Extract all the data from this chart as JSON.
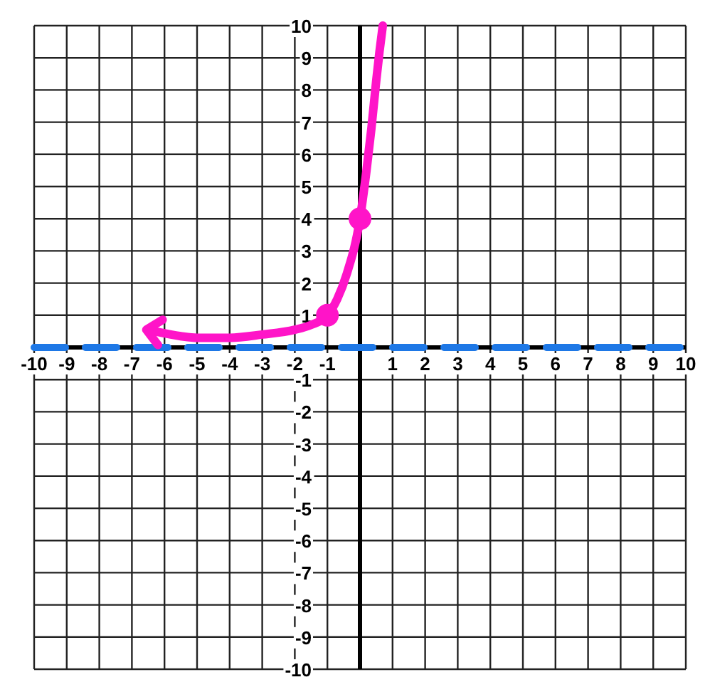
{
  "chart_data": {
    "type": "line",
    "xlim": [
      -10,
      10
    ],
    "ylim": [
      -10,
      10
    ],
    "xticks": [
      -10,
      -9,
      -8,
      -7,
      -6,
      -5,
      -4,
      -3,
      -2,
      -1,
      {
        "value": 0,
        "label": null
      },
      1,
      2,
      3,
      4,
      5,
      6,
      7,
      8,
      9,
      10
    ],
    "yticks": [
      -10,
      -9,
      -8,
      -7,
      -6,
      -5,
      -4,
      -3,
      -2,
      -1,
      {
        "value": 0,
        "label": null
      },
      1,
      2,
      3,
      4,
      5,
      6,
      7,
      8,
      9,
      10
    ],
    "grid": true,
    "line_style": "solid",
    "marker": "none",
    "series": [
      {
        "color": "#ff14c8",
        "x": [
          -6.3,
          -5.5,
          -5,
          -4,
          -3,
          -2,
          -1.5,
          -1,
          -0.7,
          -0.4,
          0,
          0.2,
          0.35,
          0.5,
          0.6,
          0.7
        ],
        "values": [
          0.5,
          0.35,
          0.3,
          0.3,
          0.4,
          0.55,
          0.7,
          1,
          1.5,
          2.3,
          4,
          5.5,
          6.8,
          8.3,
          9.2,
          10
        ]
      },
      {
        "type": "scatter",
        "color": "#ff14c8",
        "marker": "circle",
        "x": [
          -1,
          0
        ],
        "values": [
          1,
          4
        ]
      }
    ],
    "ref_lines": [
      {
        "axis": "y",
        "value": 0,
        "color": "#1e78e6",
        "line_style": "dashed"
      }
    ]
  }
}
